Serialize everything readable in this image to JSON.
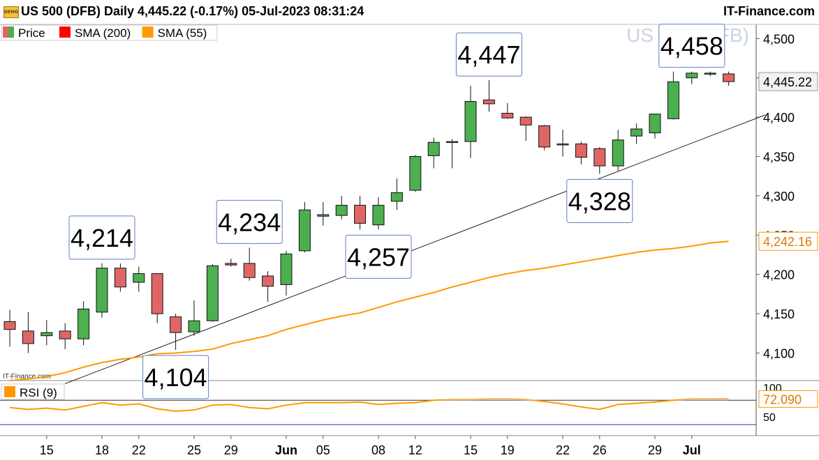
{
  "header": {
    "title": "US 500 (DFB) Daily 4,445.22 (-0.17%) 05-Jul-2023 08:31:24",
    "brand": "IT-Finance.com",
    "demo_badge": "DEMO"
  },
  "chart_data": {
    "type": "candlestick",
    "instrument_watermark": "US 500 (DFB)",
    "source_watermark": "IT-Finance.com",
    "legend": [
      {
        "label": "Price",
        "color": "#e06666",
        "color2": "#4caf50"
      },
      {
        "label": "SMA (200)",
        "color": "#ff0000"
      },
      {
        "label": "SMA (55)",
        "color": "#ff9900"
      }
    ],
    "y_ticks": [
      4100,
      4150,
      4200,
      4250,
      4300,
      4350,
      4400,
      4450,
      4500
    ],
    "y_tick_labels": [
      "4,100",
      "4,150",
      "4,200",
      "4,250",
      "4,300",
      "4,350",
      "4,400",
      "4,450",
      "4,500"
    ],
    "ylim": [
      4065,
      4518
    ],
    "last_price_label": "4,445.22",
    "sma55_label": "4,242.16",
    "x_tick_labels": [
      {
        "i": 2,
        "label": "15"
      },
      {
        "i": 5,
        "label": "18"
      },
      {
        "i": 7,
        "label": "22"
      },
      {
        "i": 10,
        "label": "25"
      },
      {
        "i": 12,
        "label": "29"
      },
      {
        "i": 15,
        "label": "Jun"
      },
      {
        "i": 17,
        "label": "05"
      },
      {
        "i": 20,
        "label": "08"
      },
      {
        "i": 22,
        "label": "12"
      },
      {
        "i": 25,
        "label": "15"
      },
      {
        "i": 27,
        "label": "19"
      },
      {
        "i": 30,
        "label": "22"
      },
      {
        "i": 32,
        "label": "26"
      },
      {
        "i": 35,
        "label": "29"
      },
      {
        "i": 37,
        "label": "Jul"
      }
    ],
    "candles": [
      {
        "o": 4140,
        "h": 4155,
        "l": 4108,
        "c": 4130
      },
      {
        "o": 4128,
        "h": 4152,
        "l": 4100,
        "c": 4112
      },
      {
        "o": 4122,
        "h": 4142,
        "l": 4110,
        "c": 4126
      },
      {
        "o": 4128,
        "h": 4138,
        "l": 4105,
        "c": 4118
      },
      {
        "o": 4118,
        "h": 4166,
        "l": 4110,
        "c": 4156
      },
      {
        "o": 4152,
        "h": 4214,
        "l": 4145,
        "c": 4208
      },
      {
        "o": 4208,
        "h": 4214,
        "l": 4178,
        "c": 4184
      },
      {
        "o": 4190,
        "h": 4210,
        "l": 4178,
        "c": 4201
      },
      {
        "o": 4201,
        "h": 4201,
        "l": 4138,
        "c": 4150
      },
      {
        "o": 4146,
        "h": 4150,
        "l": 4104,
        "c": 4126
      },
      {
        "o": 4127,
        "h": 4167,
        "l": 4122,
        "c": 4141
      },
      {
        "o": 4141,
        "h": 4213,
        "l": 4140,
        "c": 4211
      },
      {
        "o": 4214,
        "h": 4220,
        "l": 4210,
        "c": 4212
      },
      {
        "o": 4214,
        "h": 4234,
        "l": 4192,
        "c": 4196
      },
      {
        "o": 4198,
        "h": 4204,
        "l": 4165,
        "c": 4185
      },
      {
        "o": 4187,
        "h": 4230,
        "l": 4173,
        "c": 4226
      },
      {
        "o": 4230,
        "h": 4292,
        "l": 4228,
        "c": 4282
      },
      {
        "o": 4274,
        "h": 4292,
        "l": 4262,
        "c": 4276
      },
      {
        "o": 4275,
        "h": 4300,
        "l": 4270,
        "c": 4288
      },
      {
        "o": 4288,
        "h": 4300,
        "l": 4257,
        "c": 4265
      },
      {
        "o": 4263,
        "h": 4298,
        "l": 4257,
        "c": 4288
      },
      {
        "o": 4293,
        "h": 4322,
        "l": 4282,
        "c": 4304
      },
      {
        "o": 4307,
        "h": 4352,
        "l": 4305,
        "c": 4350
      },
      {
        "o": 4351,
        "h": 4374,
        "l": 4335,
        "c": 4368
      },
      {
        "o": 4369,
        "h": 4372,
        "l": 4335,
        "c": 4369
      },
      {
        "o": 4369,
        "h": 4440,
        "l": 4348,
        "c": 4420
      },
      {
        "o": 4422,
        "h": 4447,
        "l": 4407,
        "c": 4417
      },
      {
        "o": 4405,
        "h": 4418,
        "l": 4398,
        "c": 4399
      },
      {
        "o": 4400,
        "h": 4401,
        "l": 4370,
        "c": 4390
      },
      {
        "o": 4389,
        "h": 4390,
        "l": 4358,
        "c": 4362
      },
      {
        "o": 4365,
        "h": 4384,
        "l": 4350,
        "c": 4366
      },
      {
        "o": 4366,
        "h": 4369,
        "l": 4340,
        "c": 4349
      },
      {
        "o": 4360,
        "h": 4362,
        "l": 4328,
        "c": 4338
      },
      {
        "o": 4338,
        "h": 4384,
        "l": 4332,
        "c": 4371
      },
      {
        "o": 4376,
        "h": 4392,
        "l": 4366,
        "c": 4385
      },
      {
        "o": 4380,
        "h": 4402,
        "l": 4373,
        "c": 4404
      },
      {
        "o": 4398,
        "h": 4458,
        "l": 4397,
        "c": 4445
      },
      {
        "o": 4450,
        "h": 4458,
        "l": 4442,
        "c": 4456
      },
      {
        "o": 4455,
        "h": 4458,
        "l": 4452,
        "c": 4456
      },
      {
        "o": 4455,
        "h": 4458,
        "l": 4440,
        "c": 4445.22
      }
    ],
    "sma55": [
      4065,
      4067,
      4070,
      4075,
      4082,
      4088,
      4092,
      4095,
      4099,
      4100,
      4102,
      4105,
      4112,
      4117,
      4122,
      4130,
      4136,
      4142,
      4147,
      4151,
      4158,
      4165,
      4171,
      4177,
      4184,
      4190,
      4196,
      4201,
      4205,
      4208,
      4212,
      4216,
      4220,
      4224,
      4228,
      4231,
      4233,
      4236,
      4240,
      4242.16
    ],
    "annotations": [
      {
        "label": "4,214",
        "i": 5,
        "value": 4214,
        "pos": "above"
      },
      {
        "label": "4,104",
        "i": 9,
        "value": 4104,
        "pos": "below"
      },
      {
        "label": "4,234",
        "i": 13,
        "value": 4234,
        "pos": "above"
      },
      {
        "label": "4,257",
        "i": 20,
        "value": 4257,
        "pos": "below"
      },
      {
        "label": "4,447",
        "i": 26,
        "value": 4447,
        "pos": "above"
      },
      {
        "label": "4,328",
        "i": 32,
        "value": 4328,
        "pos": "below"
      },
      {
        "label": "4,458",
        "i": 37,
        "value": 4458,
        "pos": "above"
      }
    ],
    "trendline": [
      {
        "i": 3.0,
        "value": 4061
      },
      {
        "i": 41.0,
        "value": 4403
      }
    ],
    "rsi": {
      "label": "RSI (9)",
      "color": "#ff9900",
      "last_label": "72.090",
      "upper_level": 70,
      "lower_level": 30,
      "tick_labels": [
        "100",
        "50"
      ],
      "values": [
        58,
        55,
        57,
        54,
        60,
        66,
        62,
        64,
        56,
        52,
        54,
        62,
        63,
        58,
        56,
        62,
        66,
        66,
        66,
        67,
        63,
        65,
        66,
        70,
        71,
        71,
        72,
        72,
        71,
        68,
        64,
        59,
        55,
        63,
        65,
        67,
        70,
        72,
        72,
        72.09
      ]
    }
  }
}
